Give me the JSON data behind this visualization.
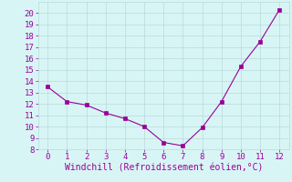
{
  "x": [
    0,
    1,
    2,
    3,
    4,
    5,
    6,
    7,
    8,
    9,
    10,
    11,
    12
  ],
  "y": [
    13.5,
    12.2,
    11.9,
    11.2,
    10.7,
    10.0,
    8.6,
    8.3,
    9.9,
    12.2,
    15.3,
    17.5,
    20.3
  ],
  "line_color": "#990099",
  "marker": "s",
  "marker_size": 2.5,
  "background_color": "#d8f5f5",
  "grid_color": "#b8dada",
  "xlabel": "Windchill (Refroidissement éolien,°C)",
  "xlabel_color": "#990099",
  "tick_color": "#990099",
  "xlim": [
    -0.5,
    12.5
  ],
  "ylim": [
    8,
    21
  ],
  "xticks": [
    0,
    1,
    2,
    3,
    4,
    5,
    6,
    7,
    8,
    9,
    10,
    11,
    12
  ],
  "yticks": [
    8,
    9,
    10,
    11,
    12,
    13,
    14,
    15,
    16,
    17,
    18,
    19,
    20
  ],
  "tick_fontsize": 6.5,
  "xlabel_fontsize": 7
}
